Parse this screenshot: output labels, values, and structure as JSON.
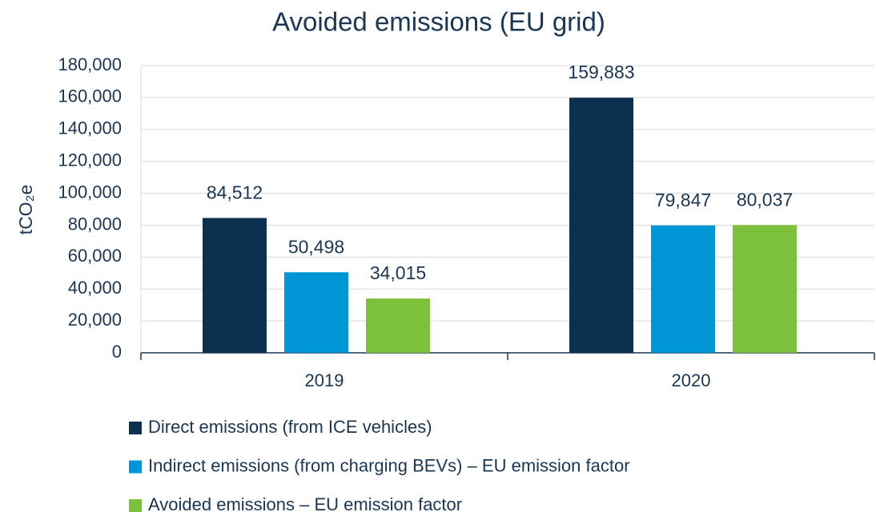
{
  "chart_data": {
    "type": "bar",
    "title": "Avoided emissions (EU grid)",
    "ylabel": "tCO₂e",
    "categories": [
      "2019",
      "2020"
    ],
    "series": [
      {
        "name": "Direct emissions (from ICE vehicles)",
        "color": "#0d3050",
        "values": [
          84512,
          159883
        ],
        "value_labels": [
          "84,512",
          "159,883"
        ]
      },
      {
        "name": "Indirect emissions (from charging BEVs) – EU emission factor",
        "color": "#0096d6",
        "values": [
          50498,
          79847
        ],
        "value_labels": [
          "50,498",
          "79,847"
        ]
      },
      {
        "name": "Avoided emissions – EU emission factor",
        "color": "#7dc03c",
        "values": [
          34015,
          80037
        ],
        "value_labels": [
          "34,015",
          "80,037"
        ]
      }
    ],
    "ylim": [
      0,
      180000
    ],
    "yticks": [
      0,
      {
        "value": 20000,
        "label": "20,000"
      },
      {
        "value": 40000,
        "label": "40,000"
      },
      {
        "value": 60000,
        "label": "60,000"
      },
      {
        "value": 80000,
        "label": "80,000"
      },
      {
        "value": 100000,
        "label": "100,000"
      },
      {
        "value": 120000,
        "label": "120,000"
      },
      {
        "value": 140000,
        "label": "140,000"
      },
      {
        "value": 160000,
        "label": "160,000"
      },
      {
        "value": 180000,
        "label": "180,000"
      }
    ],
    "grid": true,
    "legend": "bottom"
  }
}
